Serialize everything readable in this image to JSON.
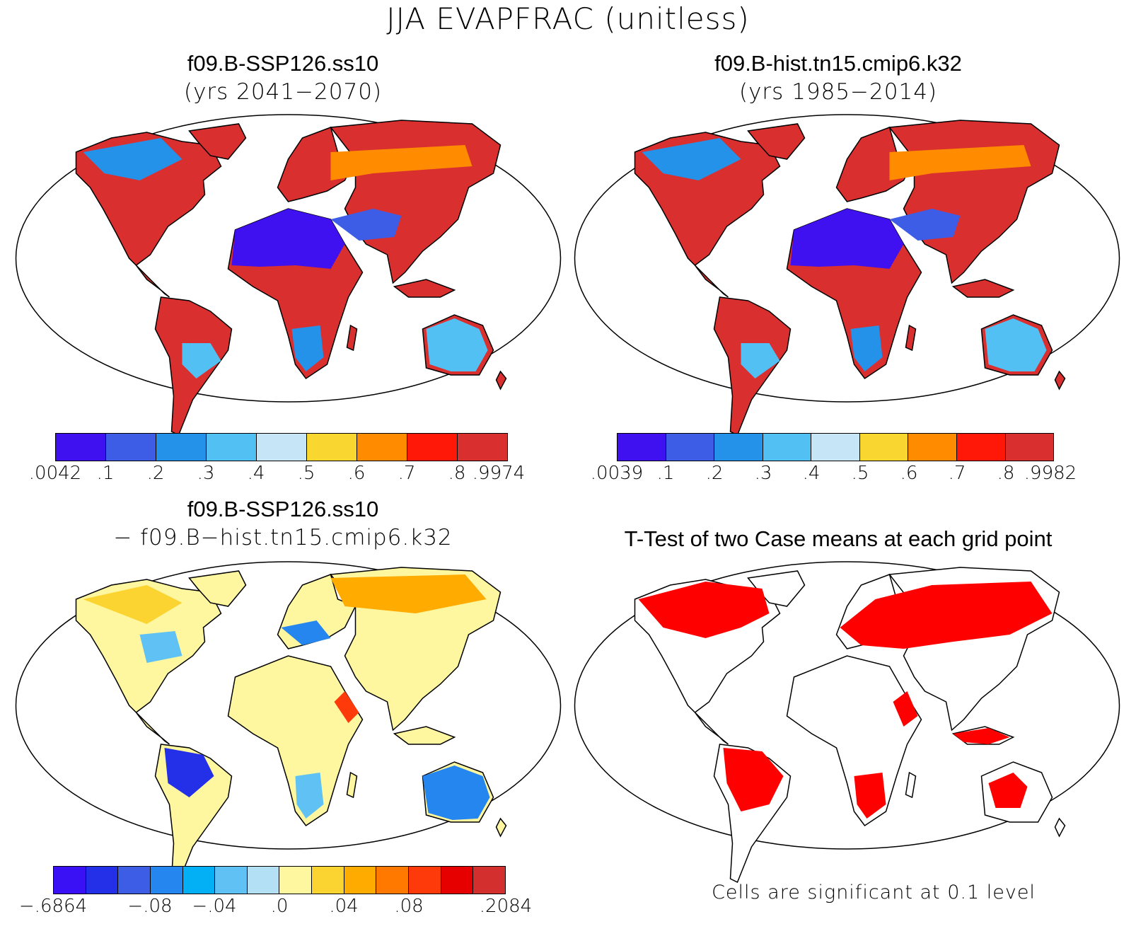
{
  "title": "JJA EVAPFRAC (unitless)",
  "colors": {
    "levels_abs": [
      "#3f10f0",
      "#3d5de6",
      "#2592ea",
      "#53c0f4",
      "#c6e6f7",
      "#fad630",
      "#ff8c00",
      "#ff1808",
      "#d92f2f"
    ],
    "levels_diff": [
      "#3a10f5",
      "#2430e8",
      "#3d5de6",
      "#2686f0",
      "#03b0f5",
      "#60c2f4",
      "#b4e0f5",
      "#fff7a0",
      "#fbd432",
      "#ffab00",
      "#ff7800",
      "#ff3a0a",
      "#e60000",
      "#d32f2f"
    ],
    "significant": "#ff0000",
    "coast": "#000000"
  },
  "panels": [
    {
      "id": "ssp126",
      "title": "f09.B-SSP126.ss10",
      "subtitle": "(yrs 2041−2070)",
      "map_type": "filled-contour",
      "colorbar": {
        "ticks": [
          ".0042",
          ".1",
          ".2",
          ".3",
          ".4",
          ".5",
          ".6",
          ".7",
          ".8",
          ".9974"
        ]
      }
    },
    {
      "id": "hist",
      "title": "f09.B-hist.tn15.cmip6.k32",
      "subtitle": "(yrs 1985−2014)",
      "map_type": "filled-contour",
      "colorbar": {
        "ticks": [
          ".0039",
          ".1",
          ".2",
          ".3",
          ".4",
          ".5",
          ".6",
          ".7",
          ".8",
          ".9982"
        ]
      }
    },
    {
      "id": "diff",
      "title": "f09.B-SSP126.ss10",
      "subtitle": "− f09.B−hist.tn15.cmip6.k32",
      "map_type": "filled-contour",
      "colorbar": {
        "ticks": [
          "−.6864",
          "−.08",
          "−.04",
          ".0",
          ".04",
          ".08",
          ".2084"
        ]
      }
    },
    {
      "id": "ttest",
      "title": "T-Test of two Case means at each grid point",
      "map_type": "significance-mask",
      "note": "Cells are significant at 0.1 level"
    }
  ]
}
